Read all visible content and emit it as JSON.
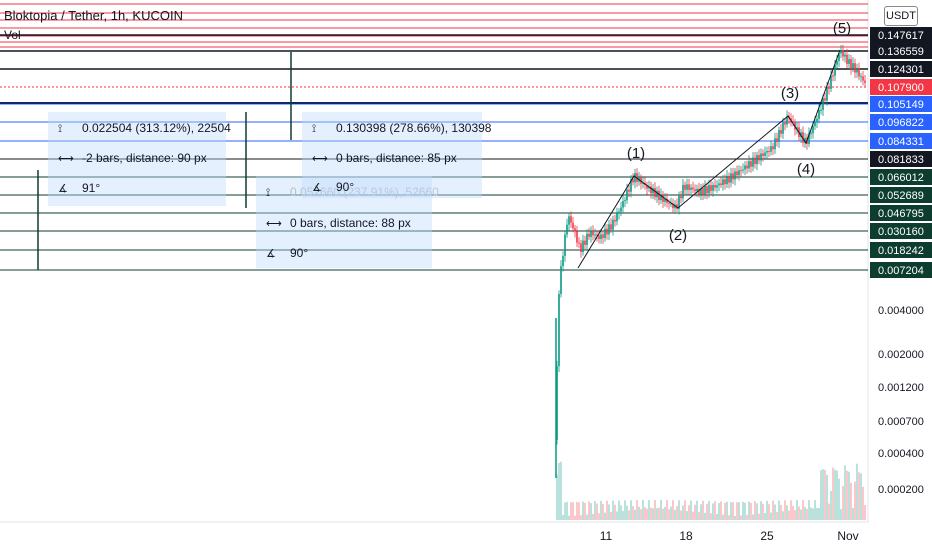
{
  "header": {
    "title": "Bloktopia / Tether, 1h, KUCOIN",
    "volume_label": "Vol",
    "currency_button": "USDT"
  },
  "measure_boxes": [
    {
      "price": "0.022504 (313.12%), 22504",
      "bars": "-2 bars, distance: 90 px",
      "angle": "91°"
    },
    {
      "price": "0.052660 (237.91%), 52660",
      "bars": "0 bars, distance: 88 px",
      "angle": "90°"
    },
    {
      "price": "0.130398 (278.66%), 130398",
      "bars": "0 bars, distance: 85 px",
      "angle": "90°"
    }
  ],
  "colors": {
    "accent_red": "#f23645",
    "accent_blue": "#2962ff",
    "line_green": "#0d3d2f",
    "black": "#131722",
    "candle_up": "#089981",
    "candle_down": "#f23645",
    "last_price": "#f23645"
  },
  "chart_data": {
    "type": "candlestick",
    "symbol": "Bloktopia / Tether",
    "interval": "1h",
    "exchange": "KUCOIN",
    "y_scale": "log",
    "x_tick_labels": [
      "11",
      "18",
      "25",
      "Nov"
    ],
    "y_tick_labels": [
      "0.004000",
      "0.002000",
      "0.001200",
      "0.000700",
      "0.000400",
      "0.000200"
    ],
    "price_levels": [
      {
        "value": "0.147617",
        "color": "black"
      },
      {
        "value": "0.136559",
        "color": "black"
      },
      {
        "value": "0.124301",
        "color": "black"
      },
      {
        "value": "0.107900",
        "color": "red",
        "last_price": true
      },
      {
        "value": "0.105149",
        "color": "blue"
      },
      {
        "value": "0.096822",
        "color": "blue"
      },
      {
        "value": "0.084331",
        "color": "blue"
      },
      {
        "value": "0.081833",
        "color": "black"
      },
      {
        "value": "0.066012",
        "color": "green"
      },
      {
        "value": "0.052689",
        "color": "green"
      },
      {
        "value": "0.046795",
        "color": "green"
      },
      {
        "value": "0.030160",
        "color": "green"
      },
      {
        "value": "0.018242",
        "color": "green"
      },
      {
        "value": "0.007204",
        "color": "green"
      }
    ],
    "wave_labels": [
      "(1)",
      "(2)",
      "(3)",
      "(4)",
      "(5)"
    ]
  }
}
